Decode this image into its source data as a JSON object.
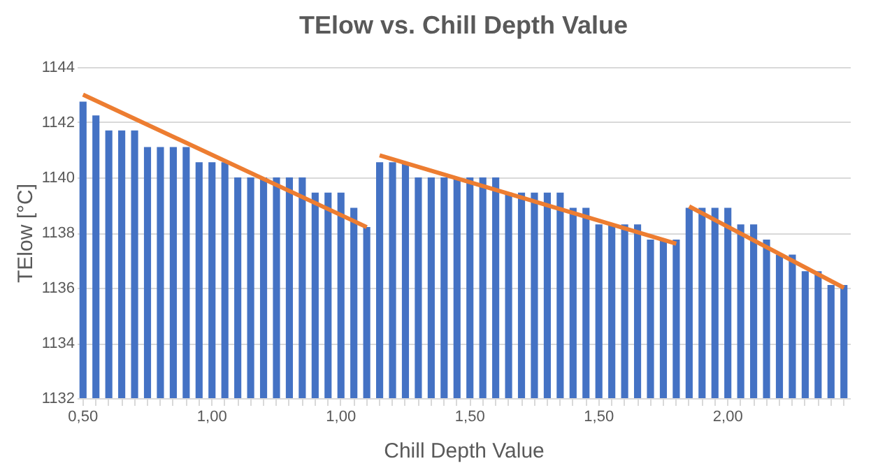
{
  "chart_data": {
    "type": "bar",
    "title": "TElow vs. Chill Depth Value",
    "xlabel": "Chill Depth Value",
    "ylabel": "TElow [°C]",
    "categories": [
      "0,50",
      null,
      null,
      null,
      null,
      null,
      null,
      null,
      null,
      null,
      "1,00",
      null,
      null,
      null,
      null,
      null,
      null,
      null,
      null,
      null,
      "1,00",
      null,
      null,
      null,
      null,
      null,
      null,
      null,
      null,
      null,
      "1,50",
      null,
      null,
      null,
      null,
      null,
      null,
      null,
      null,
      null,
      "1,50",
      null,
      null,
      null,
      null,
      null,
      null,
      null,
      null,
      null,
      "2,00",
      null,
      null,
      null,
      null,
      null,
      null,
      null,
      null,
      null
    ],
    "series": [
      {
        "color": "#4472c4",
        "values": [
          1142.75,
          1142.25,
          1141.7,
          1141.7,
          1141.7,
          1141.1,
          1141.1,
          1141.1,
          1141.1,
          1140.55,
          1140.55,
          1140.55,
          1140.0,
          1140.0,
          1140.0,
          1140.0,
          1140.0,
          1140.0,
          1139.45,
          1139.45,
          1139.45,
          1138.9,
          1138.2,
          1140.55,
          1140.55,
          1140.55,
          1140.0,
          1140.0,
          1140.0,
          1140.0,
          1140.0,
          1140.0,
          1140.0,
          1139.45,
          1139.45,
          1139.45,
          1139.45,
          1139.45,
          1138.9,
          1138.9,
          1138.3,
          1138.3,
          1138.3,
          1138.3,
          1137.75,
          1137.75,
          1137.75,
          1138.9,
          1138.9,
          1138.9,
          1138.9,
          1138.3,
          1138.3,
          1137.75,
          1137.2,
          1137.2,
          1136.6,
          1136.6,
          1136.1,
          1136.1
        ]
      },
      {
        "type": "line",
        "color": "#ed7d31",
        "values": [
          1143.0,
          null,
          null,
          null,
          null,
          null,
          null,
          null,
          null,
          null,
          null,
          null,
          null,
          null,
          null,
          null,
          null,
          null,
          null,
          null,
          null,
          null,
          1138.2,
          null,
          null,
          null,
          null,
          null,
          null,
          null,
          null,
          null,
          null,
          null,
          null,
          null,
          null,
          null,
          null,
          null,
          null,
          null,
          null,
          null,
          null,
          null,
          null,
          null,
          null,
          null,
          null,
          null,
          null,
          null,
          null,
          null,
          null,
          null,
          null,
          null
        ]
      },
      {
        "type": "line",
        "color": "#ed7d31",
        "values": [
          null,
          null,
          null,
          null,
          null,
          null,
          null,
          null,
          null,
          null,
          null,
          null,
          null,
          null,
          null,
          null,
          null,
          null,
          null,
          null,
          null,
          null,
          null,
          1140.8,
          null,
          null,
          null,
          null,
          null,
          null,
          null,
          null,
          null,
          null,
          null,
          null,
          null,
          null,
          null,
          null,
          null,
          null,
          null,
          null,
          null,
          null,
          1137.6,
          null,
          null,
          null,
          null,
          null,
          null,
          null,
          null,
          null,
          null,
          null,
          null,
          null
        ]
      },
      {
        "type": "line",
        "color": "#ed7d31",
        "values": [
          null,
          null,
          null,
          null,
          null,
          null,
          null,
          null,
          null,
          null,
          null,
          null,
          null,
          null,
          null,
          null,
          null,
          null,
          null,
          null,
          null,
          null,
          null,
          null,
          null,
          null,
          null,
          null,
          null,
          null,
          null,
          null,
          null,
          null,
          null,
          null,
          null,
          null,
          null,
          null,
          null,
          null,
          null,
          null,
          null,
          null,
          null,
          1138.95,
          null,
          null,
          null,
          null,
          null,
          null,
          null,
          null,
          null,
          null,
          null,
          1136.0
        ]
      }
    ],
    "ylim": [
      1132,
      1144
    ],
    "yticks": [
      1132,
      1134,
      1136,
      1138,
      1140,
      1142,
      1144
    ],
    "grid": "y",
    "legend": false
  }
}
